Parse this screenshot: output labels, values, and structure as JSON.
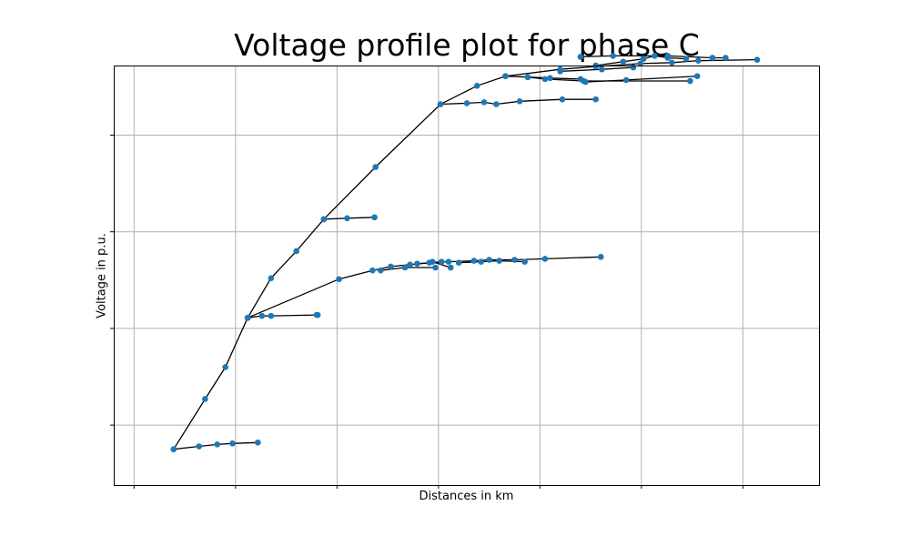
{
  "chart_data": {
    "type": "line",
    "title": "Voltage profile plot for phase C",
    "xlabel": "Distances in km",
    "ylabel": "Voltage in p.u.",
    "grid": true,
    "xlim": [
      -0.2,
      6.75
    ],
    "ylim": [
      -0.62,
      3.72
    ],
    "xticks": [
      0,
      1,
      2,
      3,
      4,
      5,
      6
    ],
    "yticks": [
      0,
      1,
      2,
      3
    ],
    "line_color": "#000000",
    "marker_color": "#1f77b4",
    "series": [
      {
        "x": [
          0.39,
          0.64,
          0.82,
          0.97,
          1.22
        ],
        "y": [
          -0.25,
          -0.22,
          -0.2,
          -0.19,
          -0.18
        ]
      },
      {
        "x": [
          0.39,
          0.7,
          0.9,
          1.12,
          1.35,
          1.6,
          1.87,
          2.38,
          3.02,
          3.38,
          3.66,
          4.2,
          4.55,
          4.99,
          5.3,
          5.56,
          6.14
        ],
        "y": [
          -0.25,
          0.27,
          0.6,
          1.11,
          1.52,
          1.8,
          2.13,
          2.67,
          3.32,
          3.51,
          3.61,
          3.68,
          3.71,
          3.74,
          3.75,
          3.77,
          3.78
        ]
      },
      {
        "x": [
          1.12,
          1.26,
          1.35,
          1.8,
          1.81
        ],
        "y": [
          1.11,
          1.13,
          1.13,
          1.14,
          1.14
        ]
      },
      {
        "x": [
          1.87,
          2.1,
          2.37
        ],
        "y": [
          2.13,
          2.14,
          2.15
        ]
      },
      {
        "x": [
          1.12,
          2.02,
          2.35,
          2.53,
          2.72,
          2.91,
          3.03
        ],
        "y": [
          1.11,
          1.51,
          1.6,
          1.64,
          1.66,
          1.68,
          1.69
        ]
      },
      {
        "x": [
          2.43,
          2.67,
          2.97
        ],
        "y": [
          1.6,
          1.63,
          1.63
        ]
      },
      {
        "x": [
          2.79,
          3.1,
          3.35,
          3.5,
          3.75,
          4.05,
          4.6
        ],
        "y": [
          1.67,
          1.69,
          1.7,
          1.71,
          1.71,
          1.72,
          1.74
        ]
      },
      {
        "x": [
          2.94,
          3.12
        ],
        "y": [
          1.69,
          1.63
        ]
      },
      {
        "x": [
          3.2,
          3.42,
          3.6,
          3.85
        ],
        "y": [
          1.68,
          1.69,
          1.7,
          1.69
        ]
      },
      {
        "x": [
          3.02,
          3.28,
          3.45,
          3.57,
          3.8,
          4.22,
          4.55
        ],
        "y": [
          3.32,
          3.33,
          3.34,
          3.32,
          3.35,
          3.37,
          3.37
        ]
      },
      {
        "x": [
          3.66,
          3.88,
          4.1,
          4.4,
          4.45,
          4.85,
          5.55
        ],
        "y": [
          3.61,
          3.6,
          3.59,
          3.58,
          3.55,
          3.57,
          3.61
        ]
      },
      {
        "x": [
          3.88,
          4.05,
          4.43,
          5.48
        ],
        "y": [
          3.6,
          3.58,
          3.56,
          3.56
        ]
      },
      {
        "x": [
          4.2,
          4.61,
          4.92
        ],
        "y": [
          3.66,
          3.68,
          3.7
        ]
      },
      {
        "x": [
          4.4,
          4.72,
          5.26,
          5.7,
          5.83
        ],
        "y": [
          3.81,
          3.82,
          3.82,
          3.8,
          3.8
        ]
      },
      {
        "x": [
          4.55,
          4.82,
          5.02
        ],
        "y": [
          3.72,
          3.76,
          3.79
        ]
      },
      {
        "x": [
          5.02,
          5.13,
          5.26,
          5.44
        ],
        "y": [
          3.79,
          3.82,
          3.8,
          3.79
        ]
      }
    ]
  }
}
